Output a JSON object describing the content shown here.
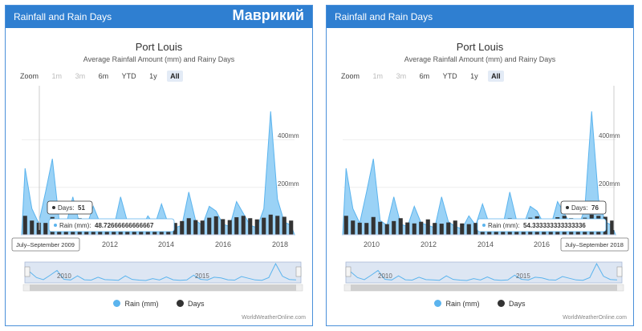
{
  "overlay_label": "Маврикий",
  "panels": [
    {
      "header": "Rainfall and Rain Days",
      "title": "Port Louis",
      "subtitle": "Average Rainfall Amount (mm) and Rainy Days",
      "zoom_label": "Zoom",
      "zoom_buttons": [
        "1m",
        "3m",
        "6m",
        "YTD",
        "1y",
        "All"
      ],
      "y_ticks": [
        "400mm",
        "200mm"
      ],
      "x_ticks": [
        "2012",
        "2014",
        "2016",
        "2018"
      ],
      "navigator_ticks": [
        "2010",
        "2015"
      ],
      "tooltip_days_label": "Days:",
      "tooltip_days_value": "51",
      "tooltip_rain_label": "Rain (mm):",
      "tooltip_rain_value": "48.72666666666667",
      "tooltip_date": "July–September 2009",
      "legend_rain": "Rain (mm)",
      "legend_days": "Days",
      "attribution": "WorldWeatherOnline.com"
    },
    {
      "header": "Rainfall and Rain Days",
      "title": "Port Louis",
      "subtitle": "Average Rainfall Amount (mm) and Rainy Days",
      "zoom_label": "Zoom",
      "zoom_buttons": [
        "1m",
        "3m",
        "6m",
        "YTD",
        "1y",
        "All"
      ],
      "y_ticks": [
        "400mm",
        "200mm"
      ],
      "x_ticks": [
        "2010",
        "2012",
        "2014",
        "2016",
        "2018"
      ],
      "navigator_ticks": [
        "2010",
        "2015"
      ],
      "tooltip_days_label": "Days:",
      "tooltip_days_value": "76",
      "tooltip_rain_label": "Rain (mm):",
      "tooltip_rain_value": "54.333333333333336",
      "tooltip_date": "July–September 2018",
      "legend_rain": "Rain (mm)",
      "legend_days": "Days",
      "attribution": "WorldWeatherOnline.com"
    }
  ],
  "colors": {
    "header": "#2f7fd1",
    "rain": "#5bb4ee",
    "days": "#333333"
  },
  "chart_data": [
    {
      "type": "area",
      "title": "Port Louis",
      "subtitle": "Average Rainfall Amount (mm) and Rainy Days",
      "x_quarters": [
        "2009Q1",
        "2009Q2",
        "2009Q3",
        "2009Q4",
        "2010Q1",
        "2010Q2",
        "2010Q3",
        "2010Q4",
        "2011Q1",
        "2011Q2",
        "2011Q3",
        "2011Q4",
        "2012Q1",
        "2012Q2",
        "2012Q3",
        "2012Q4",
        "2013Q1",
        "2013Q2",
        "2013Q3",
        "2013Q4",
        "2014Q1",
        "2014Q2",
        "2014Q3",
        "2014Q4",
        "2015Q1",
        "2015Q2",
        "2015Q3",
        "2015Q4",
        "2016Q1",
        "2016Q2",
        "2016Q3",
        "2016Q4",
        "2017Q1",
        "2017Q2",
        "2017Q3",
        "2017Q4",
        "2018Q1",
        "2018Q2",
        "2018Q3",
        "2018Q4"
      ],
      "series": [
        {
          "name": "Rain (mm)",
          "type": "area",
          "values": [
            280,
            110,
            49,
            180,
            320,
            60,
            40,
            160,
            45,
            35,
            120,
            50,
            40,
            30,
            160,
            55,
            35,
            25,
            80,
            40,
            130,
            45,
            30,
            40,
            180,
            60,
            40,
            120,
            100,
            45,
            35,
            140,
            90,
            40,
            30,
            110,
            520,
            150,
            54,
            40
          ]
        },
        {
          "name": "Days",
          "type": "column",
          "values": [
            80,
            60,
            51,
            50,
            75,
            55,
            45,
            58,
            70,
            52,
            48,
            55,
            65,
            50,
            47,
            52,
            60,
            48,
            45,
            50,
            68,
            55,
            50,
            58,
            70,
            62,
            60,
            72,
            78,
            66,
            62,
            74,
            80,
            70,
            65,
            72,
            85,
            80,
            76,
            60
          ]
        }
      ],
      "y_ticks": [
        "200mm",
        "400mm"
      ],
      "x_ticks": [
        "2012",
        "2014",
        "2016",
        "2018"
      ]
    },
    {
      "type": "area",
      "title": "Port Louis",
      "subtitle": "Average Rainfall Amount (mm) and Rainy Days",
      "x_quarters": [
        "2009Q1",
        "2009Q2",
        "2009Q3",
        "2009Q4",
        "2010Q1",
        "2010Q2",
        "2010Q3",
        "2010Q4",
        "2011Q1",
        "2011Q2",
        "2011Q3",
        "2011Q4",
        "2012Q1",
        "2012Q2",
        "2012Q3",
        "2012Q4",
        "2013Q1",
        "2013Q2",
        "2013Q3",
        "2013Q4",
        "2014Q1",
        "2014Q2",
        "2014Q3",
        "2014Q4",
        "2015Q1",
        "2015Q2",
        "2015Q3",
        "2015Q4",
        "2016Q1",
        "2016Q2",
        "2016Q3",
        "2016Q4",
        "2017Q1",
        "2017Q2",
        "2017Q3",
        "2017Q4",
        "2018Q1",
        "2018Q2",
        "2018Q3",
        "2018Q4"
      ],
      "series": [
        {
          "name": "Rain (mm)",
          "type": "area",
          "values": [
            280,
            110,
            49,
            180,
            320,
            60,
            40,
            160,
            45,
            35,
            120,
            50,
            40,
            30,
            160,
            55,
            35,
            25,
            80,
            40,
            130,
            45,
            30,
            40,
            180,
            60,
            40,
            120,
            100,
            45,
            35,
            140,
            90,
            40,
            30,
            110,
            520,
            150,
            54,
            40
          ]
        },
        {
          "name": "Days",
          "type": "column",
          "values": [
            80,
            60,
            51,
            50,
            75,
            55,
            45,
            58,
            70,
            52,
            48,
            55,
            65,
            50,
            47,
            52,
            60,
            48,
            45,
            50,
            68,
            55,
            50,
            58,
            70,
            62,
            60,
            72,
            78,
            66,
            62,
            74,
            80,
            70,
            65,
            72,
            85,
            80,
            76,
            60
          ]
        }
      ],
      "y_ticks": [
        "200mm",
        "400mm"
      ],
      "x_ticks": [
        "2010",
        "2012",
        "2014",
        "2016",
        "2018"
      ]
    }
  ]
}
